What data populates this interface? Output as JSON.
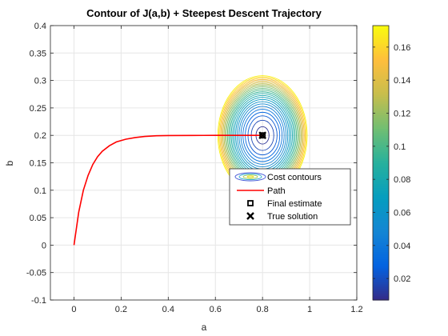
{
  "chart_data": {
    "type": "contour",
    "title": "Contour of J(a,b) + Steepest Descent Trajectory",
    "xlabel": "a",
    "ylabel": "b",
    "xlim": [
      -0.1,
      1.2
    ],
    "ylim": [
      -0.1,
      0.4
    ],
    "xticks": [
      "0",
      "0.2",
      "0.4",
      "0.6",
      "0.8",
      "1",
      "1.2"
    ],
    "xtick_values": [
      0,
      0.2,
      0.4,
      0.6,
      0.8,
      1.0,
      1.2
    ],
    "yticks": [
      "-0.1",
      "-0.05",
      "0",
      "0.05",
      "0.1",
      "0.15",
      "0.2",
      "0.25",
      "0.3",
      "0.35",
      "0.4"
    ],
    "ytick_values": [
      -0.1,
      -0.05,
      0,
      0.05,
      0.1,
      0.15,
      0.2,
      0.25,
      0.3,
      0.35,
      0.4
    ],
    "grid": true,
    "contour": {
      "center": [
        0.8,
        0.2
      ],
      "x_scale": 0.47,
      "y_scale": 0.27,
      "j_min": 0.007,
      "j_max": 0.173,
      "num_levels": 24,
      "colormap": "parula"
    },
    "colorbar": {
      "ticks": [
        "0.02",
        "0.04",
        "0.06",
        "0.08",
        "0.1",
        "0.12",
        "0.14",
        "0.16"
      ],
      "tick_values": [
        0.02,
        0.04,
        0.06,
        0.08,
        0.1,
        0.12,
        0.14,
        0.16
      ],
      "range": [
        0.007,
        0.173
      ]
    },
    "series": [
      {
        "name": "Path",
        "color": "#ff0000",
        "x": [
          0,
          0.02,
          0.04,
          0.06,
          0.08,
          0.1,
          0.12,
          0.15,
          0.18,
          0.22,
          0.26,
          0.3,
          0.35,
          0.4,
          0.5,
          0.6,
          0.7,
          0.8
        ],
        "y": [
          0,
          0.06,
          0.1,
          0.127,
          0.147,
          0.161,
          0.171,
          0.181,
          0.188,
          0.193,
          0.196,
          0.198,
          0.1993,
          0.1997,
          0.1999,
          0.2,
          0.2,
          0.2
        ]
      }
    ],
    "markers": [
      {
        "name": "Final estimate",
        "x": 0.8,
        "y": 0.2,
        "shape": "square"
      },
      {
        "name": "True solution",
        "x": 0.8,
        "y": 0.2,
        "shape": "cross"
      }
    ],
    "legend": {
      "position": "lower-right",
      "entries": [
        "Cost contours",
        "Path",
        "Final estimate",
        "True solution"
      ]
    }
  }
}
